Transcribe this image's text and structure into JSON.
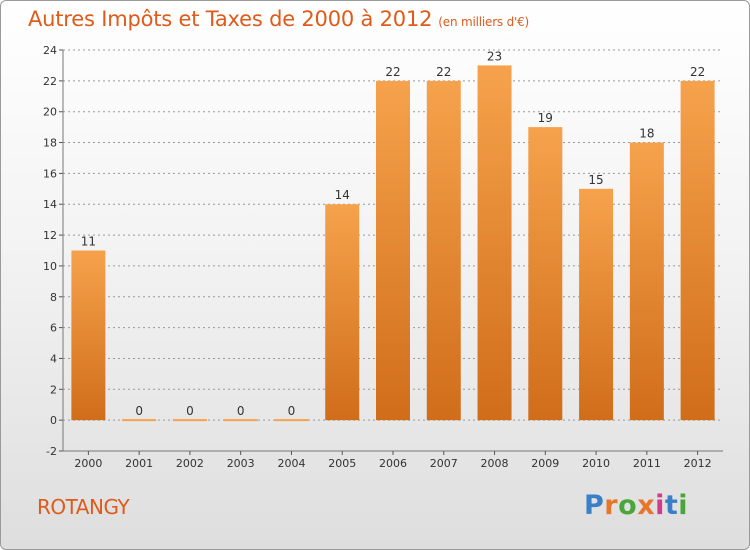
{
  "header": {
    "title": "Autres Impôts et Taxes de 2000 à 2012",
    "unit": "(en milliers d'€)"
  },
  "footer": {
    "commune": "ROTANGY",
    "logo_text": "Proxiti",
    "logo_colors": [
      "#3a7fc8",
      "#e8762a",
      "#4aa63a",
      "#e8762a",
      "#d23a8a",
      "#3a7fc8",
      "#4aa63a"
    ]
  },
  "colors": {
    "bar_top": "#f6a24c",
    "bar_bottom": "#d06d1a",
    "accent": "#e05a1a",
    "grid": "#9a9a9a"
  },
  "chart_data": {
    "type": "bar",
    "title": "Autres Impôts et Taxes de 2000 à 2012",
    "subtitle": "(en milliers d'€)",
    "categories": [
      "2000",
      "2001",
      "2002",
      "2003",
      "2004",
      "2005",
      "2006",
      "2007",
      "2008",
      "2009",
      "2010",
      "2011",
      "2012"
    ],
    "values": [
      11,
      0,
      0,
      0,
      0,
      14,
      22,
      22,
      23,
      19,
      15,
      18,
      22
    ],
    "ylim": [
      -2,
      24
    ],
    "yticks": [
      -2,
      0,
      2,
      4,
      6,
      8,
      10,
      12,
      14,
      16,
      18,
      20,
      22,
      24
    ],
    "grid": true,
    "grid_style": "dashed horizontal",
    "data_labels": true
  }
}
